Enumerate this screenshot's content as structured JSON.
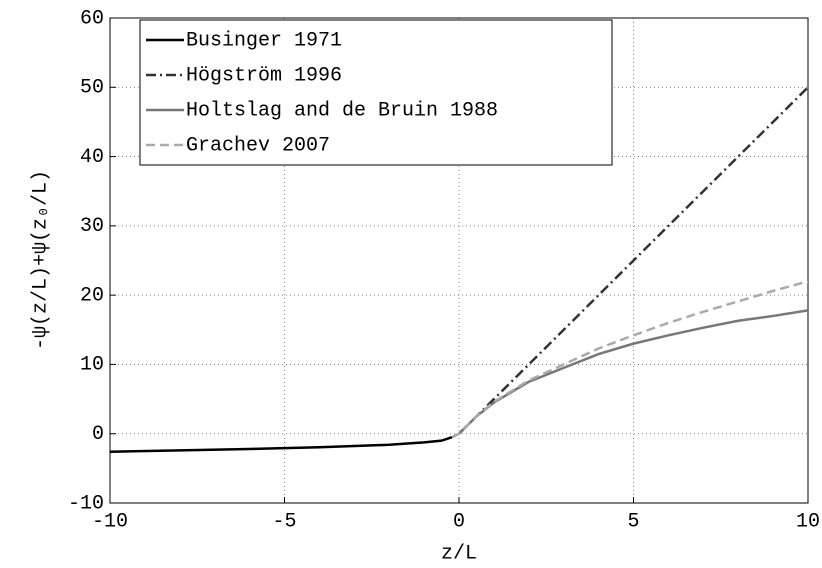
{
  "chart_data": {
    "type": "line",
    "xlabel": "z/L",
    "ylabel": "-ψ(z/L)+ψ(z₀/L)",
    "x": [
      -10,
      -8,
      -6,
      -4,
      -2,
      -1,
      -0.5,
      -0.2,
      0,
      0.5,
      1,
      2,
      3,
      4,
      5,
      6,
      7,
      8,
      9,
      10
    ],
    "series": [
      {
        "name": "Businger 1971",
        "color": "#000000",
        "dash": "solid",
        "values": [
          -2.6,
          -2.4,
          -2.2,
          -1.95,
          -1.6,
          -1.25,
          -1.0,
          -0.5,
          null,
          null,
          null,
          null,
          null,
          null,
          null,
          null,
          null,
          null,
          null,
          null
        ]
      },
      {
        "name": "Högström 1996",
        "color": "#333333",
        "dash": "dashdot",
        "values": [
          null,
          null,
          null,
          null,
          null,
          null,
          null,
          null,
          0,
          2.5,
          5,
          10,
          15,
          20,
          25,
          30,
          35,
          40,
          45,
          50
        ]
      },
      {
        "name": "Holtslag and de Bruin 1988",
        "color": "#777777",
        "dash": "solid",
        "values": [
          null,
          null,
          null,
          null,
          null,
          null,
          null,
          -0.5,
          0,
          2.5,
          4.5,
          7.5,
          9.5,
          11.5,
          13,
          14.2,
          15.3,
          16.3,
          17,
          17.8
        ]
      },
      {
        "name": "Grachev 2007",
        "color": "#aaaaaa",
        "dash": "dashed",
        "values": [
          null,
          null,
          null,
          null,
          null,
          null,
          null,
          -0.5,
          0,
          2.5,
          4.6,
          7.7,
          10,
          12.3,
          14.2,
          16,
          17.6,
          19.1,
          20.6,
          22
        ]
      }
    ],
    "xlim": [
      -10,
      10
    ],
    "xticks": [
      -10,
      -5,
      0,
      5,
      10
    ],
    "ylim": [
      -10,
      60
    ],
    "yticks": [
      -10,
      0,
      10,
      20,
      30,
      40,
      50,
      60
    ],
    "grid": true,
    "legend": "upper left"
  }
}
